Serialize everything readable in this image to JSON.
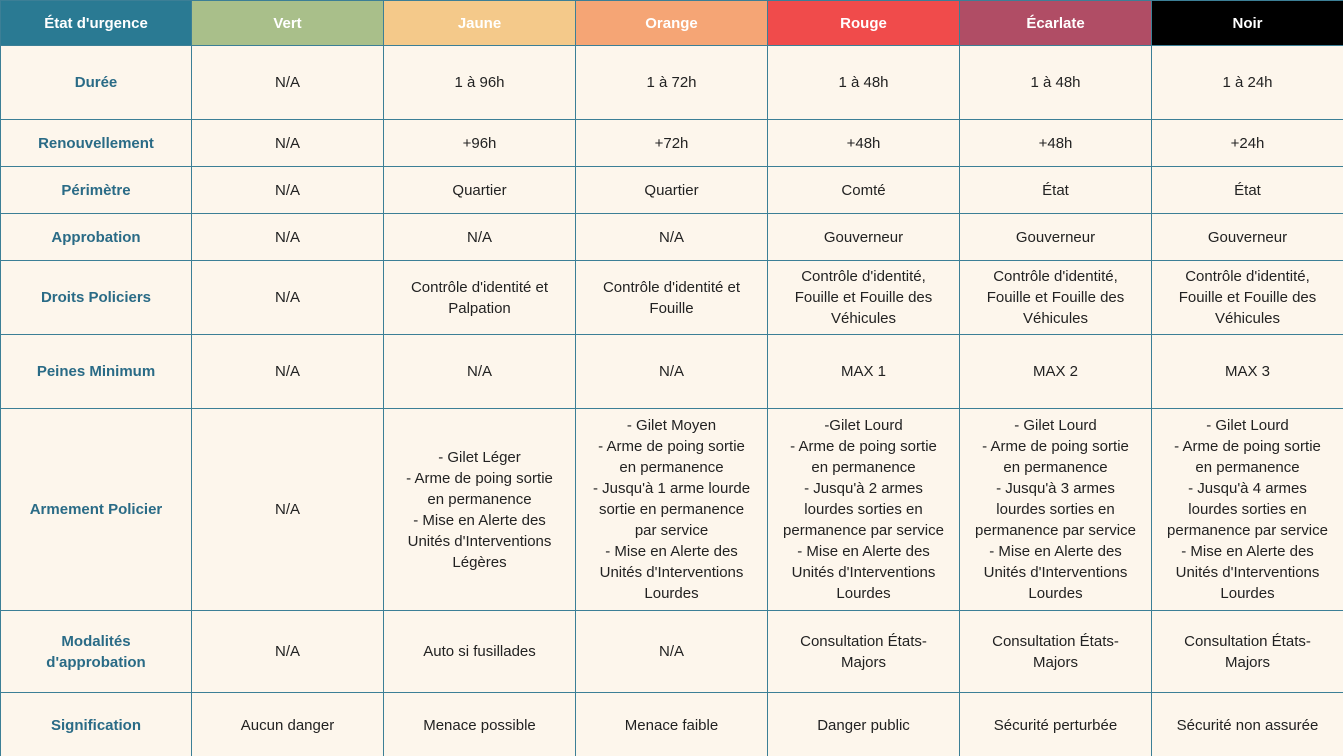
{
  "header": {
    "title": "État d'urgence",
    "levels": [
      {
        "label": "Vert",
        "color": "#a9bf8a"
      },
      {
        "label": "Jaune",
        "color": "#f4c98a"
      },
      {
        "label": "Orange",
        "color": "#f5a575"
      },
      {
        "label": "Rouge",
        "color": "#f04b4b"
      },
      {
        "label": "Écarlate",
        "color": "#b04d65"
      },
      {
        "label": "Noir",
        "color": "#000000"
      }
    ],
    "title_color": "#2a7a93"
  },
  "rows": [
    {
      "label": "Durée",
      "cells": [
        "N/A",
        "1 à 96h",
        "1 à 72h",
        "1 à 48h",
        "1 à 48h",
        "1 à 24h"
      ]
    },
    {
      "label": "Renouvellement",
      "cells": [
        "N/A",
        "+96h",
        "+72h",
        "+48h",
        "+48h",
        "+24h"
      ]
    },
    {
      "label": "Périmètre",
      "cells": [
        "N/A",
        "Quartier",
        "Quartier",
        "Comté",
        "État",
        "État"
      ]
    },
    {
      "label": "Approbation",
      "cells": [
        "N/A",
        "N/A",
        "N/A",
        "Gouverneur",
        "Gouverneur",
        "Gouverneur"
      ]
    },
    {
      "label": "Droits Policiers",
      "cells": [
        "N/A",
        "Contrôle d'identité et\nPalpation",
        "Contrôle d'identité et\nFouille",
        "Contrôle d'identité,\nFouille et Fouille des\nVéhicules",
        "Contrôle d'identité,\nFouille et Fouille des\nVéhicules",
        "Contrôle d'identité,\nFouille et Fouille des\nVéhicules"
      ]
    },
    {
      "label": "Peines Minimum",
      "cells": [
        "N/A",
        "N/A",
        "N/A",
        "MAX 1",
        "MAX 2",
        "MAX 3"
      ]
    },
    {
      "label": "Armement Policier",
      "cells": [
        "N/A",
        "- Gilet Léger\n- Arme de poing sortie\nen permanence\n- Mise en Alerte des\nUnités d'Interventions\nLégères",
        "- Gilet Moyen\n- Arme de poing sortie\nen permanence\n- Jusqu'à 1 arme lourde\nsortie en permanence\npar service\n- Mise en Alerte des\nUnités d'Interventions\nLourdes",
        "-Gilet Lourd\n- Arme de poing sortie\nen permanence\n- Jusqu'à 2 armes\nlourdes sorties en\npermanence par service\n- Mise en Alerte des\nUnités d'Interventions\nLourdes",
        "- Gilet Lourd\n- Arme de poing sortie\nen permanence\n- Jusqu'à 3 armes\nlourdes sorties en\npermanence par service\n- Mise en Alerte des\nUnités d'Interventions\nLourdes",
        "- Gilet Lourd\n- Arme de poing sortie\nen permanence\n- Jusqu'à 4 armes\nlourdes sorties en\npermanence par service\n- Mise en Alerte des\nUnités d'Interventions\nLourdes"
      ]
    },
    {
      "label": "Modalités\nd'approbation",
      "cells": [
        "N/A",
        "Auto si fusillades",
        "N/A",
        "Consultation États-\nMajors",
        "Consultation États-\nMajors",
        "Consultation États-\nMajors"
      ]
    },
    {
      "label": "Signification",
      "cells": [
        "Aucun danger",
        "Menace possible",
        "Menace faible",
        "Danger public",
        "Sécurité perturbée",
        "Sécurité non assurée"
      ]
    }
  ]
}
